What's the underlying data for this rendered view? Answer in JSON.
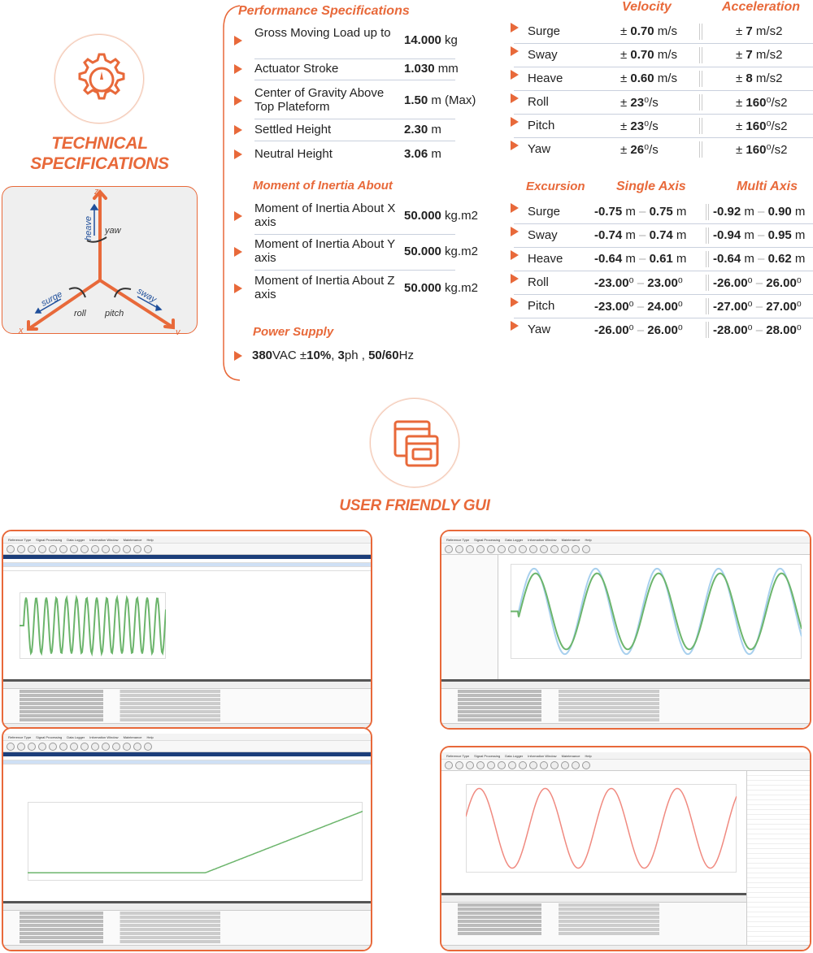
{
  "colors": {
    "accent": "#e8693a",
    "axis_blue": "#1f4e9a",
    "plot_green": "#6cb56c",
    "plot_red": "#f08a80"
  },
  "left": {
    "icon": "gear-gauge-icon",
    "title_line1": "TECHNICAL",
    "title_line2": "SPECIFICATIONS",
    "diagram": {
      "z": "z",
      "x": "x",
      "y": "y",
      "heave": "heave",
      "yaw": "yaw",
      "surge": "surge",
      "sway": "sway",
      "roll": "roll",
      "pitch": "pitch"
    }
  },
  "performance": {
    "title": "Performance Specifications",
    "rows": [
      {
        "label": "Gross Moving Load up to",
        "value": "14.000",
        "unit": " kg"
      },
      {
        "label": "Actuator Stroke",
        "value": "1.030",
        "unit": " mm"
      },
      {
        "label": "Center of Gravity Above Top Plateform",
        "value": "1.50",
        "unit": " m (Max)"
      },
      {
        "label": "Settled Height",
        "value": "2.30",
        "unit": " m"
      },
      {
        "label": "Neutral Height",
        "value": "3.06",
        "unit": " m"
      }
    ]
  },
  "inertia": {
    "title": "Moment of Inertia About",
    "rows": [
      {
        "label": "Moment of Inertia About X axis",
        "value": "50.000",
        "unit": " kg.m2"
      },
      {
        "label": "Moment of Inertia About Y axis",
        "value": "50.000",
        "unit": " kg.m2"
      },
      {
        "label": "Moment of Inertia About Z axis",
        "value": "50.000",
        "unit": " kg.m2"
      }
    ]
  },
  "power": {
    "title": "Power Supply",
    "v": "380",
    "v_unit": "VAC ±",
    "tol": "10%",
    "sep": ", ",
    "ph": "3",
    "ph_unit": "ph , ",
    "hz": "50/60",
    "hz_unit": "Hz"
  },
  "motion": {
    "headers": {
      "velocity": "Velocity",
      "acceleration": "Acceleration"
    },
    "rows": [
      {
        "axis": "Surge",
        "vel": "0.70",
        "vel_unit": " m/s",
        "acc": "7",
        "acc_unit": " m/s2"
      },
      {
        "axis": "Sway",
        "vel": "0.70",
        "vel_unit": " m/s",
        "acc": "7",
        "acc_unit": " m/s2"
      },
      {
        "axis": "Heave",
        "vel": "0.60",
        "vel_unit": " m/s",
        "acc": "8",
        "acc_unit": " m/s2"
      },
      {
        "axis": "Roll",
        "vel": "23",
        "vel_unit": "⁰/s",
        "acc": "160",
        "acc_unit": "⁰/s2"
      },
      {
        "axis": "Pitch",
        "vel": "23",
        "vel_unit": "⁰/s",
        "acc": "160",
        "acc_unit": "⁰/s2"
      },
      {
        "axis": "Yaw",
        "vel": "26",
        "vel_unit": "⁰/s",
        "acc": "160",
        "acc_unit": "⁰/s2"
      }
    ],
    "pm": "± "
  },
  "excursion": {
    "headers": {
      "excursion": "Excursion",
      "single": "Single Axis",
      "multi": "Multi Axis"
    },
    "rows": [
      {
        "axis": "Surge",
        "s_min": "-0.75",
        "s_max": "0.75",
        "m_min": "-0.92",
        "m_max": "0.90",
        "unit": " m"
      },
      {
        "axis": "Sway",
        "s_min": "-0.74",
        "s_max": "0.74",
        "m_min": "-0.94",
        "m_max": "0.95",
        "unit": " m"
      },
      {
        "axis": "Heave",
        "s_min": "-0.64",
        "s_max": "0.61",
        "m_min": "-0.64",
        "m_max": "0.62",
        "unit": " m"
      },
      {
        "axis": "Roll",
        "s_min": "-23.00",
        "s_max": "23.00",
        "m_min": "-26.00",
        "m_max": "26.00",
        "unit": "⁰"
      },
      {
        "axis": "Pitch",
        "s_min": "-23.00",
        "s_max": "24.00",
        "m_min": "-27.00",
        "m_max": "27.00",
        "unit": "⁰"
      },
      {
        "axis": "Yaw",
        "s_min": "-26.00",
        "s_max": "26.00",
        "m_min": "-28.00",
        "m_max": "28.00",
        "unit": "⁰"
      }
    ],
    "dash": " – "
  },
  "gui": {
    "icon": "browser-windows-icon",
    "title": "USER FRIENDLY GUI",
    "menu": [
      "Reference Type",
      "Signal Processing",
      "Data Logger",
      "Information Window",
      "Maintenance",
      "Help"
    ]
  }
}
